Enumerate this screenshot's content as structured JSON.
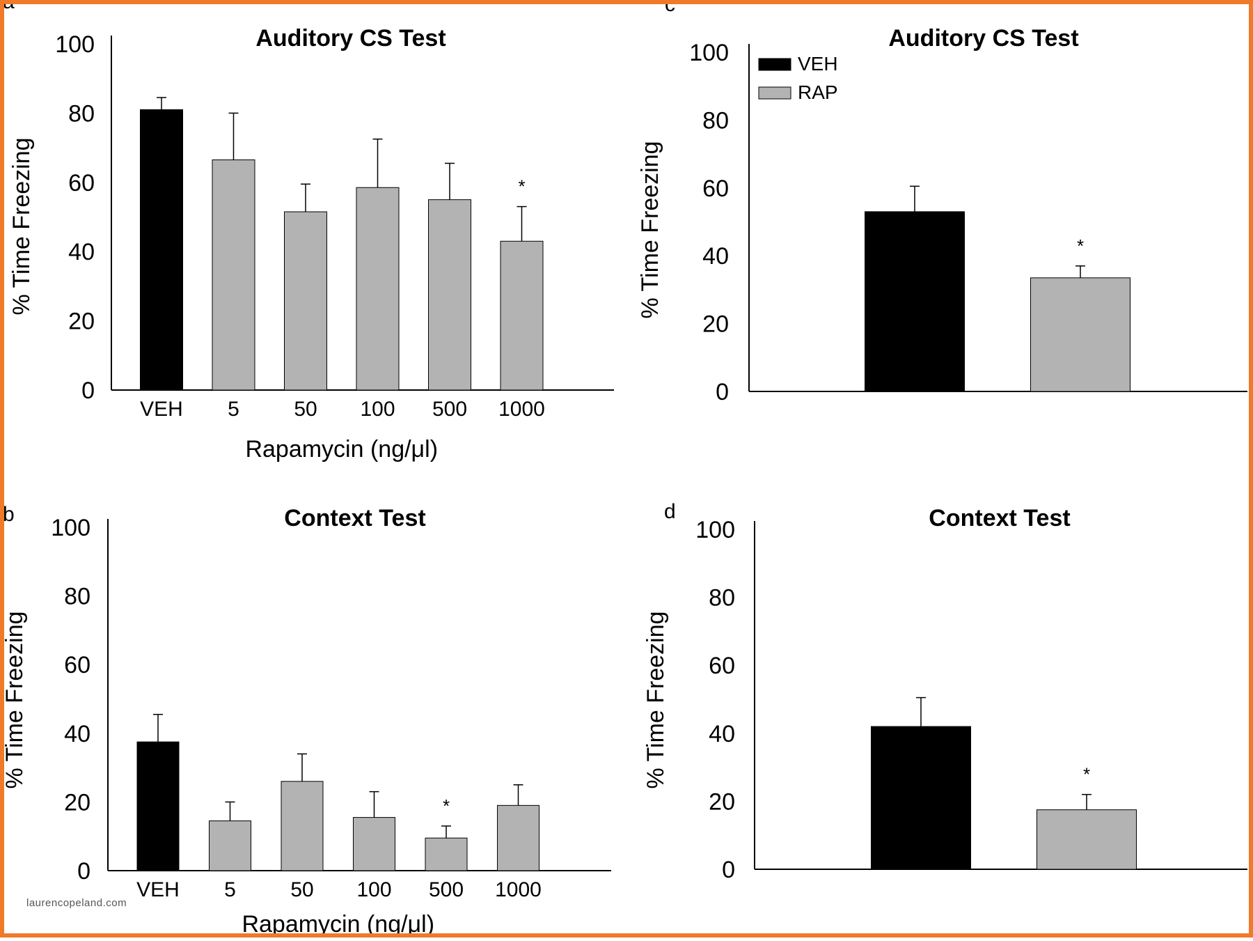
{
  "figure": {
    "border_color": "#ee7a2a",
    "bar_colors": {
      "veh": "#000000",
      "rap": "#b3b3b3"
    },
    "watermark": "laurencopeland.com"
  },
  "chart_data": [
    {
      "panel": "a",
      "type": "bar",
      "title": "Auditory CS Test",
      "xlabel": "Rapamycin (ng/μl)",
      "ylabel": "% Time Freezing",
      "ylim": [
        0,
        100
      ],
      "yticks": [
        0,
        20,
        40,
        60,
        80,
        100
      ],
      "categories": [
        "VEH",
        "5",
        "50",
        "100",
        "500",
        "1000"
      ],
      "values": [
        81,
        66.5,
        51.5,
        58.5,
        55,
        43
      ],
      "errors": [
        3.5,
        13.5,
        8,
        14,
        10.5,
        10
      ],
      "significance": [
        "",
        "",
        "",
        "",
        "",
        "*"
      ],
      "colors": [
        "#000000",
        "#b3b3b3",
        "#b3b3b3",
        "#b3b3b3",
        "#b3b3b3",
        "#b3b3b3"
      ]
    },
    {
      "panel": "c",
      "type": "bar",
      "title": "Auditory CS Test",
      "xlabel": "",
      "ylabel": "% Time Freezing",
      "ylim": [
        0,
        100
      ],
      "yticks": [
        0,
        20,
        40,
        60,
        80,
        100
      ],
      "categories": [
        "VEH",
        "RAP"
      ],
      "values": [
        53,
        33.5
      ],
      "errors": [
        7.5,
        3.5
      ],
      "significance": [
        "",
        "*"
      ],
      "colors": [
        "#000000",
        "#b3b3b3"
      ],
      "legend": [
        {
          "label": "VEH",
          "color": "#000000"
        },
        {
          "label": "RAP",
          "color": "#b3b3b3"
        }
      ],
      "legend_position": "top-left"
    },
    {
      "panel": "b",
      "type": "bar",
      "title": "Context Test",
      "xlabel": "Rapamycin (ng/μl)",
      "ylabel": "% Time Freezing",
      "ylim": [
        0,
        100
      ],
      "yticks": [
        0,
        20,
        40,
        60,
        80,
        100
      ],
      "categories": [
        "VEH",
        "5",
        "50",
        "100",
        "500",
        "1000"
      ],
      "values": [
        37.5,
        14.5,
        26,
        15.5,
        9.5,
        19
      ],
      "errors": [
        8,
        5.5,
        8,
        7.5,
        3.5,
        6
      ],
      "significance": [
        "",
        "",
        "",
        "",
        "*",
        ""
      ],
      "colors": [
        "#000000",
        "#b3b3b3",
        "#b3b3b3",
        "#b3b3b3",
        "#b3b3b3",
        "#b3b3b3"
      ]
    },
    {
      "panel": "d",
      "type": "bar",
      "title": "Context Test",
      "xlabel": "",
      "ylabel": "% Time Freezing",
      "ylim": [
        0,
        100
      ],
      "yticks": [
        0,
        20,
        40,
        60,
        80,
        100
      ],
      "categories": [
        "VEH",
        "RAP"
      ],
      "values": [
        42,
        17.5
      ],
      "errors": [
        8.5,
        4.5
      ],
      "significance": [
        "",
        "*"
      ],
      "colors": [
        "#000000",
        "#b3b3b3"
      ]
    }
  ]
}
